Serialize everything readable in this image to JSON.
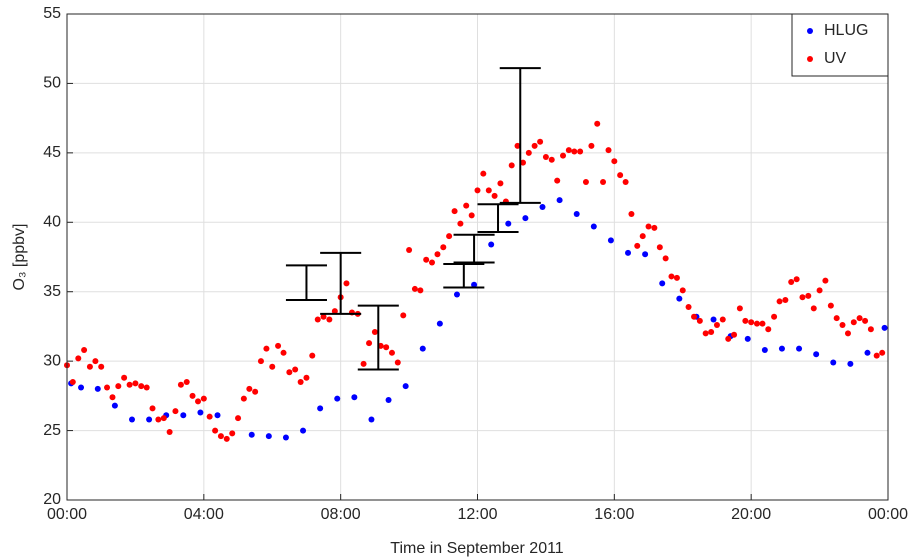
{
  "chart_data": {
    "type": "scatter",
    "xlabel": "Time in September 2011",
    "ylabel": "O₃ [ppbv]",
    "xlim": [
      0,
      24
    ],
    "xticks": [
      {
        "value": 0,
        "label": "00:00"
      },
      {
        "value": 4,
        "label": "04:00"
      },
      {
        "value": 8,
        "label": "08:00"
      },
      {
        "value": 12,
        "label": "12:00"
      },
      {
        "value": 16,
        "label": "16:00"
      },
      {
        "value": 20,
        "label": "20:00"
      },
      {
        "value": 24,
        "label": "00:00"
      }
    ],
    "ylim": [
      20,
      55
    ],
    "yticks": [
      20,
      25,
      30,
      35,
      40,
      45,
      50,
      55
    ],
    "grid": true,
    "legend": "upper right",
    "series": [
      {
        "name": "HLUG",
        "color": "#0000ff",
        "x": [
          0.12,
          0.41,
          0.9,
          1.4,
          1.9,
          2.4,
          2.9,
          3.4,
          3.9,
          4.4,
          5.4,
          5.9,
          6.4,
          6.9,
          7.4,
          7.9,
          8.4,
          8.9,
          9.4,
          9.9,
          10.4,
          10.9,
          11.4,
          11.9,
          12.4,
          12.9,
          13.4,
          13.9,
          14.4,
          14.9,
          15.4,
          15.9,
          16.4,
          16.9,
          17.4,
          17.9,
          18.4,
          18.9,
          19.4,
          19.9,
          20.4,
          20.9,
          21.4,
          21.9,
          22.4,
          22.9,
          23.4,
          23.9
        ],
        "values": [
          28.4,
          28.1,
          28.0,
          26.8,
          25.8,
          25.8,
          26.1,
          26.1,
          26.3,
          26.1,
          24.7,
          24.6,
          24.5,
          25.0,
          26.6,
          27.3,
          27.4,
          25.8,
          27.2,
          28.2,
          30.9,
          32.7,
          34.8,
          35.5,
          38.4,
          39.9,
          40.3,
          41.1,
          41.6,
          40.6,
          39.7,
          38.7,
          37.8,
          37.7,
          35.6,
          34.5,
          33.2,
          33.0,
          31.8,
          31.6,
          30.8,
          30.9,
          30.9,
          30.5,
          29.9,
          29.8,
          30.6,
          32.4
        ]
      },
      {
        "name": "UV",
        "color": "#ff0000",
        "x": [
          0.0,
          0.17,
          0.33,
          0.5,
          0.67,
          0.83,
          1.0,
          1.17,
          1.33,
          1.5,
          1.67,
          1.83,
          2.0,
          2.17,
          2.33,
          2.5,
          2.67,
          2.83,
          3.0,
          3.17,
          3.33,
          3.5,
          3.67,
          3.83,
          4.0,
          4.17,
          4.33,
          4.5,
          4.67,
          4.83,
          5.0,
          5.17,
          5.33,
          5.5,
          5.67,
          5.83,
          6.0,
          6.17,
          6.33,
          6.5,
          6.67,
          6.83,
          7.0,
          7.17,
          7.33,
          7.5,
          7.67,
          7.83,
          8.0,
          8.17,
          8.33,
          8.5,
          8.67,
          8.83,
          9.0,
          9.17,
          9.33,
          9.5,
          9.67,
          9.83,
          10.0,
          10.17,
          10.33,
          10.5,
          10.67,
          10.83,
          11.0,
          11.17,
          11.33,
          11.5,
          11.67,
          11.83,
          12.0,
          12.17,
          12.33,
          12.5,
          12.67,
          12.83,
          13.0,
          13.17,
          13.33,
          13.5,
          13.67,
          13.83,
          14.0,
          14.17,
          14.33,
          14.5,
          14.67,
          14.83,
          15.0,
          15.17,
          15.33,
          15.5,
          15.67,
          15.83,
          16.0,
          16.17,
          16.33,
          16.5,
          16.67,
          16.83,
          17.0,
          17.17,
          17.33,
          17.5,
          17.67,
          17.83,
          18.0,
          18.17,
          18.33,
          18.5,
          18.67,
          18.83,
          19.0,
          19.17,
          19.33,
          19.5,
          19.67,
          19.83,
          20.0,
          20.17,
          20.33,
          20.5,
          20.67,
          20.83,
          21.0,
          21.17,
          21.33,
          21.5,
          21.67,
          21.83,
          22.0,
          22.17,
          22.33,
          22.5,
          22.67,
          22.83,
          23.0,
          23.17,
          23.33,
          23.5,
          23.67,
          23.83
        ],
        "values": [
          29.7,
          28.5,
          30.2,
          30.8,
          29.6,
          30.0,
          29.6,
          28.1,
          27.4,
          28.2,
          28.8,
          28.3,
          28.4,
          28.2,
          28.1,
          26.6,
          25.8,
          25.9,
          24.9,
          26.4,
          28.3,
          28.5,
          27.5,
          27.1,
          27.3,
          26.0,
          25.0,
          24.6,
          24.4,
          24.8,
          25.9,
          27.3,
          28.0,
          27.8,
          30.0,
          30.9,
          29.6,
          31.1,
          30.6,
          29.2,
          29.4,
          28.5,
          28.8,
          30.4,
          33.0,
          33.2,
          33.0,
          33.6,
          34.6,
          35.6,
          33.5,
          33.4,
          29.8,
          31.3,
          32.1,
          31.1,
          31.0,
          30.6,
          29.9,
          33.3,
          38.0,
          35.2,
          35.1,
          37.3,
          37.1,
          37.7,
          38.2,
          39.0,
          40.8,
          39.9,
          41.2,
          40.5,
          42.3,
          43.5,
          42.3,
          41.9,
          42.8,
          41.5,
          44.1,
          45.5,
          44.3,
          45.0,
          45.5,
          45.8,
          44.7,
          44.5,
          43.0,
          44.8,
          45.2,
          45.1,
          45.1,
          42.9,
          45.5,
          47.1,
          42.9,
          45.2,
          44.4,
          43.4,
          42.9,
          40.6,
          38.3,
          39.0,
          39.7,
          39.6,
          38.2,
          37.4,
          36.1,
          36.0,
          35.1,
          33.9,
          33.2,
          32.9,
          32.0,
          32.1,
          32.6,
          33.0,
          31.6,
          31.9,
          33.8,
          32.9,
          32.8,
          32.7,
          32.7,
          32.3,
          33.2,
          34.3,
          34.4,
          35.7,
          35.9,
          34.6,
          34.7,
          33.8,
          35.1,
          35.8,
          34.0,
          33.1,
          32.6,
          32.0,
          32.8,
          33.1,
          32.9,
          32.3,
          30.4,
          30.6
        ]
      }
    ],
    "errorbars": {
      "color": "#000000",
      "x": [
        7.0,
        8.0,
        9.1,
        11.6,
        11.9,
        12.6,
        13.25
      ],
      "values": [
        35.65,
        35.6,
        31.7,
        36.15,
        38.1,
        40.3,
        46.25
      ],
      "errors": [
        1.25,
        2.2,
        2.3,
        0.85,
        1.0,
        1.0,
        4.85
      ]
    }
  }
}
